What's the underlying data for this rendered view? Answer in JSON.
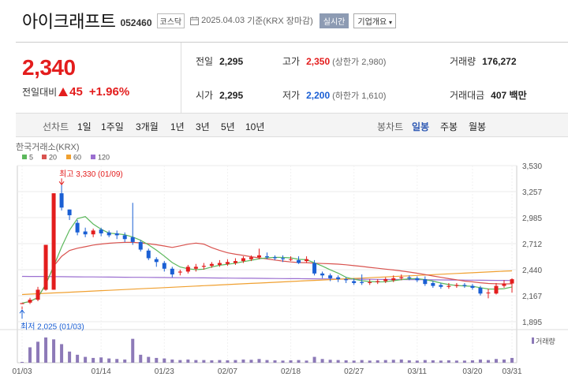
{
  "header": {
    "name": "아이크래프트",
    "code": "052460",
    "market": "코스닥",
    "date_text": "2025.04.03",
    "basis": "기준(KRX 장마감)",
    "realtime": "실시간",
    "company_menu": "기업개요"
  },
  "price": {
    "current": "2,340",
    "change_label": "전일대비",
    "change": "45",
    "change_pct": "+1.96%"
  },
  "summary": {
    "prev": {
      "label": "전일",
      "value": "2,295"
    },
    "open": {
      "label": "시가",
      "value": "2,295"
    },
    "high": {
      "label": "고가",
      "value": "2,350",
      "limit": "(상한가 2,980)"
    },
    "low": {
      "label": "저가",
      "value": "2,200",
      "limit": "(하한가 1,610)"
    },
    "volume": {
      "label": "거래량",
      "value": "176,272"
    },
    "amount": {
      "label": "거래대금",
      "value": "407 백만"
    }
  },
  "periods": {
    "line_label": "선차트",
    "items": [
      "1일",
      "1주일",
      "3개월",
      "1년",
      "3년",
      "5년",
      "10년"
    ],
    "candle_label": "봉차트",
    "candle_items": [
      "일봉",
      "주봉",
      "월봉"
    ],
    "candle_selected": "일봉"
  },
  "colors": {
    "up": "#e31d1d",
    "down": "#1a5fd4",
    "ma5": "#5cb85c",
    "ma20": "#d9534f",
    "ma60": "#f0a030",
    "ma120": "#9b6fd0"
  },
  "chart_data": {
    "type": "candlestick",
    "title": "한국거래소(KRX)",
    "legend": [
      {
        "name": "5",
        "color": "#5cb85c"
      },
      {
        "name": "20",
        "color": "#d9534f"
      },
      {
        "name": "60",
        "color": "#f0a030"
      },
      {
        "name": "120",
        "color": "#9b6fd0"
      }
    ],
    "y_ticks": [
      "3,530",
      "3,257",
      "2,985",
      "2,712",
      "2,440",
      "2,167",
      "1,895"
    ],
    "ylim": [
      1895,
      3530
    ],
    "x_ticks": [
      "01/03",
      "01/14",
      "01/23",
      "02/07",
      "02/18",
      "02/27",
      "03/11",
      "03/20",
      "03/31"
    ],
    "high_note": "최고 3,330 (01/09)",
    "low_note": "최저 2,025 (01/03)",
    "volume_label": "거래량",
    "candles": [
      [
        2080,
        2090,
        2055,
        2025
      ],
      [
        2095,
        2125,
        2145,
        2080
      ],
      [
        2125,
        2230,
        2260,
        2110
      ],
      [
        2230,
        2700,
        2700,
        2220
      ],
      [
        2230,
        3240,
        3240,
        2230
      ],
      [
        3240,
        3090,
        3330,
        3060
      ],
      [
        3070,
        3010,
        3070,
        2960
      ],
      [
        2930,
        2830,
        2960,
        2800
      ],
      [
        2840,
        2810,
        2880,
        2780
      ],
      [
        2810,
        2850,
        2870,
        2780
      ],
      [
        2860,
        2820,
        2880,
        2790
      ],
      [
        2830,
        2800,
        2850,
        2780
      ],
      [
        2820,
        2800,
        2850,
        2760
      ],
      [
        2800,
        2760,
        2830,
        2730
      ],
      [
        2780,
        2730,
        3140,
        2700
      ],
      [
        2730,
        2650,
        2750,
        2630
      ],
      [
        2640,
        2560,
        2660,
        2540
      ],
      [
        2550,
        2520,
        2570,
        2470
      ],
      [
        2510,
        2450,
        2530,
        2420
      ],
      [
        2450,
        2390,
        2470,
        2360
      ],
      [
        2410,
        2420,
        2440,
        2380
      ],
      [
        2420,
        2470,
        2490,
        2400
      ],
      [
        2450,
        2470,
        2500,
        2420
      ],
      [
        2470,
        2480,
        2510,
        2440
      ],
      [
        2480,
        2500,
        2520,
        2460
      ],
      [
        2490,
        2510,
        2540,
        2470
      ],
      [
        2500,
        2520,
        2550,
        2480
      ],
      [
        2510,
        2530,
        2560,
        2490
      ],
      [
        2530,
        2560,
        2580,
        2510
      ],
      [
        2550,
        2570,
        2590,
        2530
      ],
      [
        2570,
        2590,
        2660,
        2550
      ],
      [
        2580,
        2570,
        2620,
        2550
      ],
      [
        2570,
        2560,
        2590,
        2540
      ],
      [
        2560,
        2550,
        2590,
        2520
      ],
      [
        2550,
        2550,
        2580,
        2530
      ],
      [
        2540,
        2510,
        2580,
        2500
      ],
      [
        2530,
        2550,
        2580,
        2510
      ],
      [
        2510,
        2400,
        2540,
        2380
      ],
      [
        2400,
        2380,
        2420,
        2350
      ],
      [
        2380,
        2350,
        2400,
        2320
      ],
      [
        2360,
        2340,
        2380,
        2310
      ],
      [
        2340,
        2330,
        2360,
        2300
      ],
      [
        2320,
        2300,
        2350,
        2280
      ],
      [
        2310,
        2300,
        2390,
        2280
      ],
      [
        2300,
        2310,
        2340,
        2280
      ],
      [
        2310,
        2320,
        2340,
        2290
      ],
      [
        2320,
        2340,
        2360,
        2300
      ],
      [
        2330,
        2350,
        2380,
        2310
      ],
      [
        2350,
        2360,
        2390,
        2330
      ],
      [
        2360,
        2350,
        2380,
        2330
      ],
      [
        2350,
        2330,
        2370,
        2310
      ],
      [
        2340,
        2290,
        2370,
        2270
      ],
      [
        2300,
        2270,
        2320,
        2250
      ],
      [
        2280,
        2260,
        2300,
        2240
      ],
      [
        2260,
        2270,
        2300,
        2240
      ],
      [
        2270,
        2280,
        2300,
        2250
      ],
      [
        2280,
        2270,
        2300,
        2250
      ],
      [
        2270,
        2250,
        2290,
        2230
      ],
      [
        2250,
        2190,
        2270,
        2170
      ],
      [
        2200,
        2200,
        2240,
        2140
      ],
      [
        2190,
        2270,
        2300,
        2180
      ],
      [
        2270,
        2295,
        2330,
        2250
      ],
      [
        2295,
        2340,
        2350,
        2200
      ]
    ],
    "volumes": [
      3,
      58,
      79,
      95,
      88,
      70,
      42,
      30,
      22,
      18,
      20,
      16,
      14,
      12,
      90,
      30,
      22,
      18,
      16,
      12,
      10,
      12,
      10,
      10,
      9,
      10,
      9,
      10,
      12,
      11,
      14,
      10,
      9,
      8,
      9,
      10,
      8,
      22,
      14,
      11,
      10,
      9,
      8,
      10,
      8,
      9,
      10,
      11,
      12,
      9,
      8,
      10,
      9,
      8,
      9,
      8,
      8,
      9,
      12,
      10,
      14,
      12,
      18
    ]
  }
}
